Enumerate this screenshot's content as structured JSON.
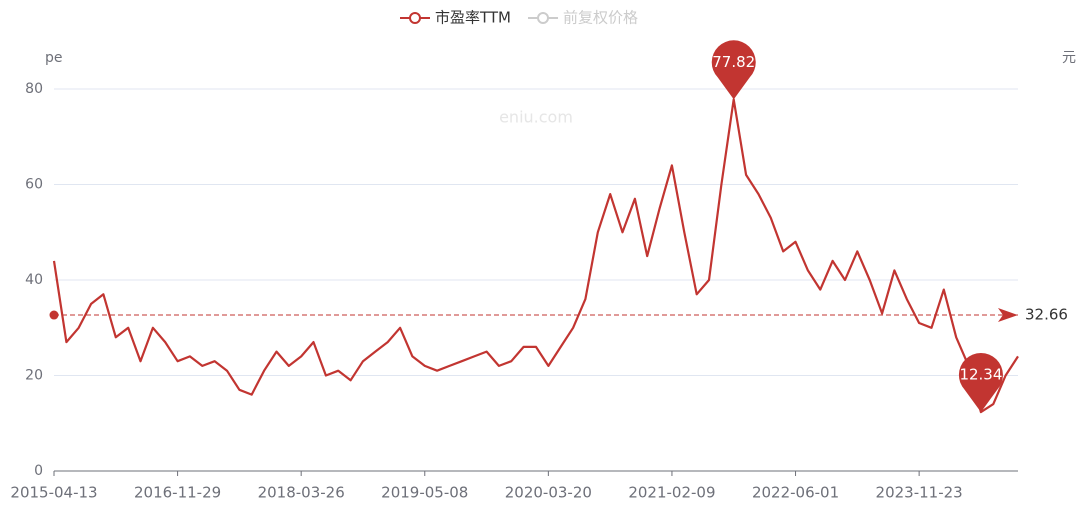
{
  "chart_data": {
    "type": "line",
    "categories": [
      "2015-04-13",
      null,
      null,
      null,
      null,
      null,
      null,
      null,
      null,
      null,
      "2016-11-29",
      null,
      null,
      null,
      null,
      null,
      null,
      null,
      null,
      null,
      "2018-03-26",
      null,
      null,
      null,
      null,
      null,
      null,
      null,
      null,
      null,
      "2019-05-08",
      null,
      null,
      null,
      null,
      null,
      null,
      null,
      null,
      null,
      "2020-03-20",
      null,
      null,
      null,
      null,
      null,
      null,
      null,
      null,
      null,
      "2021-02-09",
      null,
      null,
      null,
      null,
      null,
      null,
      null,
      null,
      null,
      "2022-06-01",
      null,
      null,
      null,
      null,
      null,
      null,
      null,
      null,
      null,
      "2023-11-23",
      null,
      null,
      null,
      null,
      null,
      null,
      null,
      null
    ],
    "series": [
      {
        "name": "市盈率TTM",
        "color": "#c23531",
        "values": [
          44,
          27,
          30,
          35,
          37,
          28,
          30,
          23,
          30,
          27,
          23,
          24,
          22,
          23,
          21,
          17,
          16,
          21,
          25,
          22,
          24,
          27,
          20,
          21,
          19,
          23,
          25,
          27,
          30,
          24,
          22,
          21,
          22,
          23,
          24,
          25,
          22,
          23,
          26,
          26,
          22,
          26,
          30,
          36,
          50,
          58,
          50,
          57,
          45,
          55,
          64,
          50,
          37,
          40,
          60,
          77.82,
          62,
          58,
          53,
          46,
          48,
          42,
          38,
          44,
          40,
          46,
          40,
          33,
          42,
          36,
          31,
          30,
          38,
          28,
          22,
          12.34,
          14,
          20,
          24
        ]
      }
    ],
    "inactive_legend": [
      {
        "name": "前复权价格",
        "color": "#cccccc"
      }
    ],
    "y_axis_name": "pe",
    "y2_axis_name": "元",
    "watermark": "eniu.com",
    "mark_line": {
      "value": 32.66
    },
    "ylim": [
      0,
      80
    ],
    "yticks": [
      0,
      20,
      40,
      60,
      80
    ],
    "grid": true
  }
}
